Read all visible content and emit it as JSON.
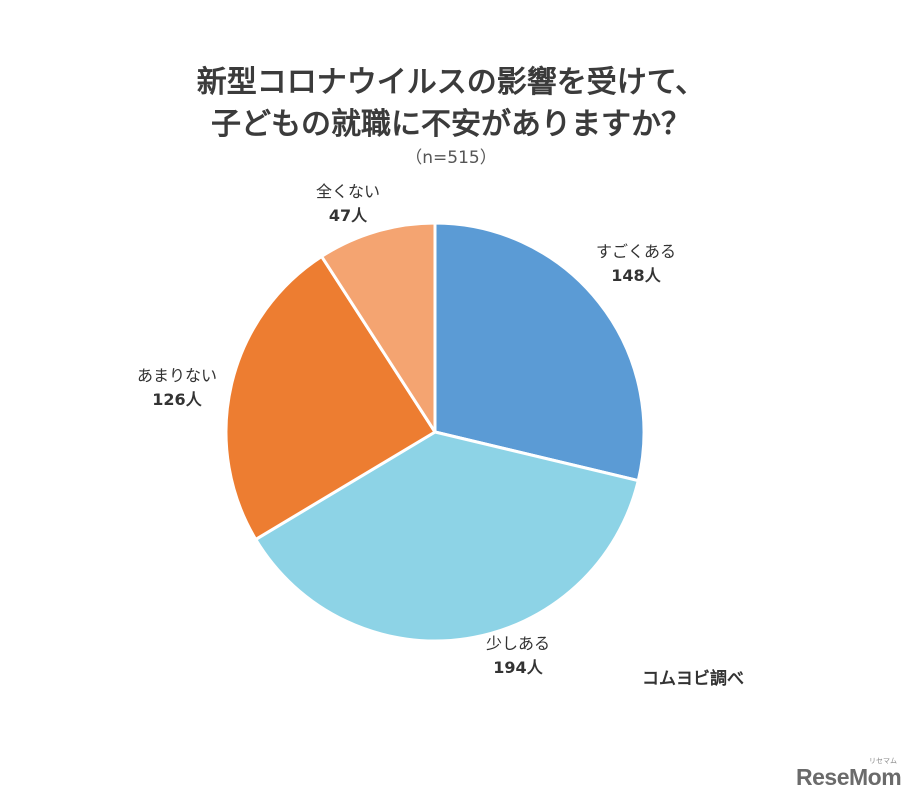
{
  "chart_data": {
    "type": "pie",
    "title_line1": "新型コロナウイルスの影響を受けて、",
    "title_line2": "子どもの就職に不安がありますか？",
    "subtitle": "（n=515）",
    "total": 515,
    "slices": [
      {
        "label": "すごくある",
        "value": 148,
        "value_text": "148人",
        "color": "#5b9bd5"
      },
      {
        "label": "少しある",
        "value": 194,
        "value_text": "194人",
        "color": "#8dd3e6"
      },
      {
        "label": "あまりない",
        "value": 126,
        "value_text": "126人",
        "color": "#ed7d31"
      },
      {
        "label": "全くない",
        "value": 47,
        "value_text": "47人",
        "color": "#f4a471"
      }
    ],
    "source": "コムヨビ調べ",
    "logo": "ReseMom",
    "logo_small": "リセマム"
  }
}
